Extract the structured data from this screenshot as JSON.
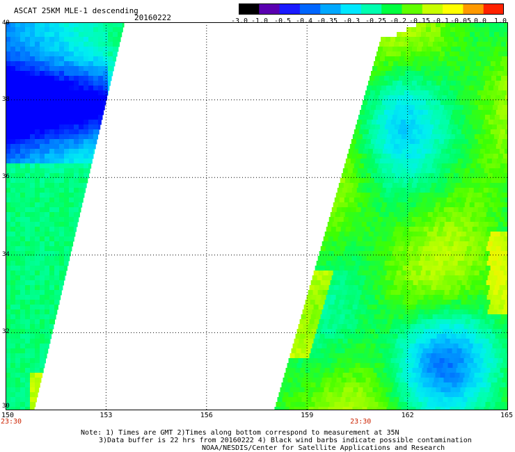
{
  "header": {
    "title": "ASCAT 25KM MLE-1 descending",
    "date": "20160222"
  },
  "colorbar": {
    "labels": [
      "-3.0",
      "-1.0",
      "-0.5",
      "-0.4",
      "-0.35",
      "-0.3",
      "-0.25",
      "-0.2",
      "-0.15",
      "-0.1",
      "-0.05",
      "0.0",
      "1.0"
    ],
    "colors": [
      "#000000",
      "#5a00b0",
      "#1a1aff",
      "#0066ff",
      "#00a8ff",
      "#00e8ff",
      "#00ffb0",
      "#00ff40",
      "#60ff00",
      "#c8ff00",
      "#ffff00",
      "#ff9900",
      "#ff2200"
    ]
  },
  "map": {
    "lat_labels": [
      "40",
      "38",
      "36",
      "34",
      "32",
      "30"
    ],
    "lat_values": [
      40,
      38,
      36,
      34,
      32,
      30
    ],
    "lon_labels": [
      "150",
      "153",
      "156",
      "159",
      "162",
      "165"
    ],
    "lon_values": [
      150,
      153,
      156,
      159,
      162,
      165
    ],
    "lat_range": [
      30,
      40
    ],
    "lon_range": [
      150,
      165
    ],
    "time_labels": [
      "23:30",
      "23:30"
    ],
    "time_lons": [
      150,
      160.6
    ]
  },
  "notes": {
    "line1": "Note: 1) Times are GMT 2)Times along bottom correspond to measurement at 35N",
    "line2": "3)Data buffer is 22 hrs from 20160222 4) Black wind barbs indicate possible contamination",
    "line3": "NOAA/NESDIS/Center for Satellite Applications and Research"
  }
}
